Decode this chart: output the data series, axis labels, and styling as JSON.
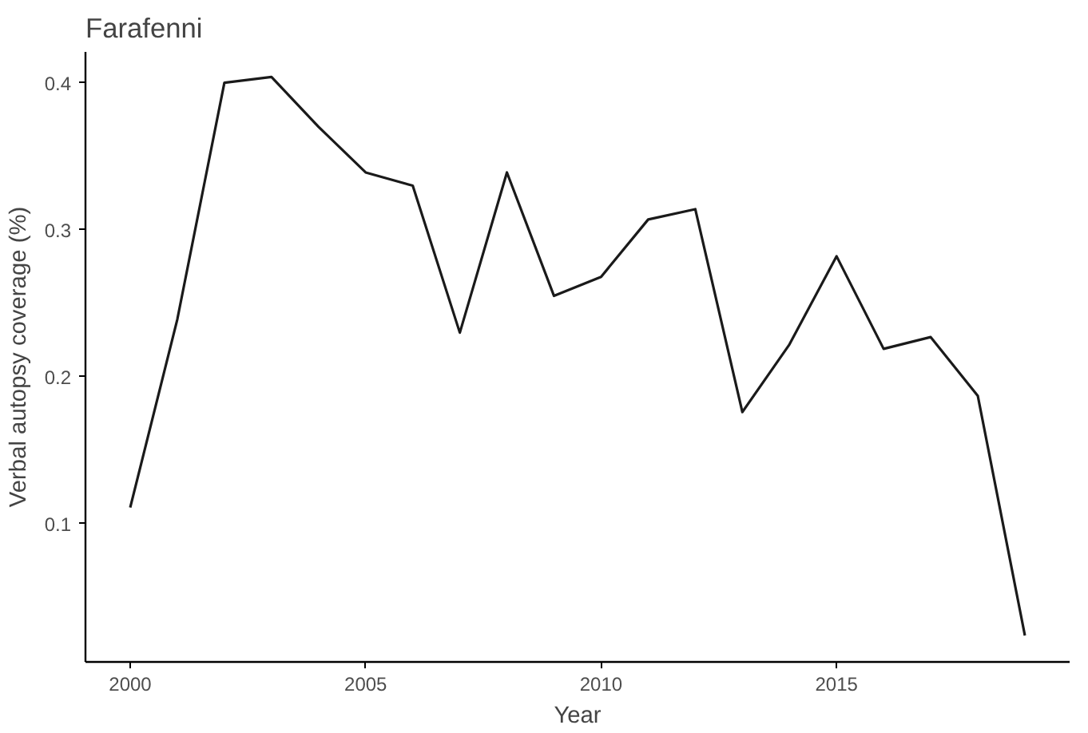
{
  "chart_data": {
    "type": "line",
    "title": "Farafenni",
    "xlabel": "Year",
    "ylabel": "Verbal autopsy coverage (%)",
    "x": [
      2000,
      2001,
      2002,
      2003,
      2004,
      2005,
      2006,
      2007,
      2008,
      2009,
      2010,
      2011,
      2012,
      2013,
      2014,
      2015,
      2016,
      2017,
      2018,
      2019
    ],
    "series": [
      {
        "color": "#1a1a1a",
        "values": [
          0.111,
          0.239,
          0.4,
          0.404,
          0.37,
          0.339,
          0.33,
          0.23,
          0.339,
          0.255,
          0.268,
          0.307,
          0.314,
          0.176,
          0.222,
          0.282,
          0.219,
          0.227,
          0.187,
          0.024
        ]
      }
    ],
    "xlim": [
      1999.05,
      2019.95
    ],
    "ylim": [
      0.006,
      0.421
    ],
    "xticks": [
      2000,
      2005,
      2010,
      2015
    ],
    "yticks": [
      0.1,
      0.2,
      0.3,
      0.4
    ],
    "grid": false,
    "marker": "none",
    "line_style": "solid"
  }
}
